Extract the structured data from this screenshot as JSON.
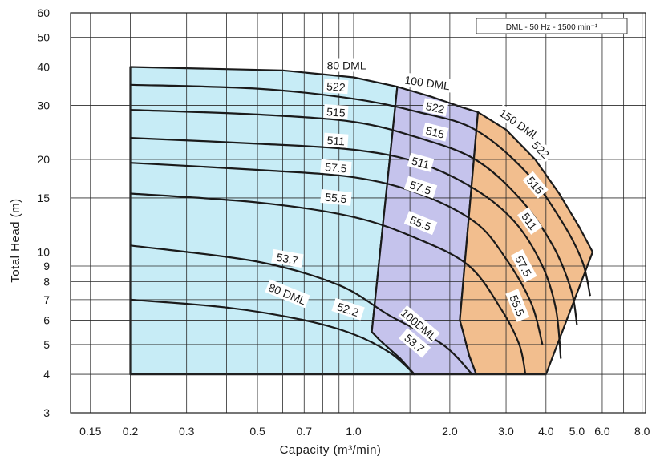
{
  "chart_data": {
    "type": "area",
    "note": "DML - 50 Hz - 1500 min⁻¹",
    "xlabel": "Capacity  (m³/min)",
    "ylabel": "Total Head  (m)",
    "x_scale": "log",
    "y_scale": "log",
    "xlim": [
      0.13,
      8.2
    ],
    "ylim": [
      3,
      60
    ],
    "grid": true,
    "x_ticks": [
      {
        "v": 0.15,
        "label": "0.15"
      },
      {
        "v": 0.2,
        "label": "0.2"
      },
      {
        "v": 0.3,
        "label": "0.3"
      },
      {
        "v": 0.5,
        "label": "0.5"
      },
      {
        "v": 0.7,
        "label": "0.7"
      },
      {
        "v": 1.0,
        "label": "1.0"
      },
      {
        "v": 2.0,
        "label": "2.0"
      },
      {
        "v": 3.0,
        "label": "3.0"
      },
      {
        "v": 4.0,
        "label": "4.0"
      },
      {
        "v": 5.0,
        "label": "5.0"
      },
      {
        "v": 6.0,
        "label": "6.0"
      },
      {
        "v": 8.0,
        "label": "8.0"
      }
    ],
    "y_ticks": [
      {
        "v": 3,
        "label": "3"
      },
      {
        "v": 4,
        "label": "4"
      },
      {
        "v": 5,
        "label": "5"
      },
      {
        "v": 6,
        "label": "6"
      },
      {
        "v": 7,
        "label": "7"
      },
      {
        "v": 8,
        "label": "8"
      },
      {
        "v": 9,
        "label": "9"
      },
      {
        "v": 10,
        "label": "10"
      },
      {
        "v": 15,
        "label": "15"
      },
      {
        "v": 20,
        "label": "20"
      },
      {
        "v": 30,
        "label": "30"
      },
      {
        "v": 40,
        "label": "40"
      },
      {
        "v": 50,
        "label": "50"
      },
      {
        "v": 60,
        "label": "60"
      }
    ],
    "x_grid_extra": [
      0.4,
      0.6,
      0.8,
      0.9,
      1.5,
      7.0
    ],
    "regions": [
      {
        "model": "80 DML",
        "color": "#c7ecf6",
        "polygon": [
          [
            0.2,
            4
          ],
          [
            0.2,
            40
          ],
          [
            0.6,
            39
          ],
          [
            1.0,
            37
          ],
          [
            1.37,
            34.5
          ],
          [
            1.14,
            5.5
          ],
          [
            1.2,
            5.2
          ],
          [
            1.4,
            4.5
          ],
          [
            1.55,
            4
          ]
        ]
      },
      {
        "model": "100 DML",
        "color": "#c5c3ec",
        "polygon": [
          [
            1.55,
            4
          ],
          [
            1.4,
            4.5
          ],
          [
            1.2,
            5.2
          ],
          [
            1.14,
            5.5
          ],
          [
            1.37,
            34.5
          ],
          [
            1.75,
            32
          ],
          [
            2.2,
            29.5
          ],
          [
            2.45,
            28.5
          ],
          [
            2.15,
            6
          ],
          [
            2.2,
            5.5
          ],
          [
            2.3,
            4.6
          ],
          [
            2.42,
            4
          ]
        ]
      },
      {
        "model": "150 DML",
        "color": "#f2be8e",
        "polygon": [
          [
            2.42,
            4
          ],
          [
            2.3,
            4.6
          ],
          [
            2.2,
            5.5
          ],
          [
            2.15,
            6
          ],
          [
            2.45,
            28.5
          ],
          [
            3.0,
            25
          ],
          [
            3.7,
            20
          ],
          [
            4.4,
            15.5
          ],
          [
            5.1,
            12
          ],
          [
            5.6,
            10
          ],
          [
            4.0,
            4
          ]
        ]
      }
    ],
    "curves": [
      {
        "label": "522",
        "points": [
          [
            0.2,
            35
          ],
          [
            0.5,
            34
          ],
          [
            1.0,
            31.5
          ],
          [
            1.6,
            28.5
          ],
          [
            2.4,
            25
          ],
          [
            3.5,
            18
          ],
          [
            4.5,
            12.5
          ],
          [
            5.2,
            9.3
          ],
          [
            5.5,
            7.2
          ]
        ]
      },
      {
        "label": "515",
        "points": [
          [
            0.2,
            29
          ],
          [
            0.5,
            28
          ],
          [
            1.0,
            26.5
          ],
          [
            1.6,
            23.5
          ],
          [
            2.4,
            20
          ],
          [
            3.3,
            15
          ],
          [
            4.2,
            10.5
          ],
          [
            4.8,
            7.5
          ],
          [
            5.0,
            5.8
          ]
        ]
      },
      {
        "label": "511",
        "points": [
          [
            0.2,
            23.5
          ],
          [
            0.5,
            22.5
          ],
          [
            1.0,
            21.5
          ],
          [
            1.6,
            19.5
          ],
          [
            2.4,
            16
          ],
          [
            3.2,
            12.5
          ],
          [
            3.9,
            9
          ],
          [
            4.3,
            6.5
          ],
          [
            4.45,
            4.5
          ]
        ]
      },
      {
        "label": "57.5",
        "points": [
          [
            0.2,
            19.5
          ],
          [
            0.5,
            18.5
          ],
          [
            1.0,
            17.5
          ],
          [
            1.6,
            15.5
          ],
          [
            2.4,
            12.5
          ],
          [
            3.0,
            9.5
          ],
          [
            3.6,
            6.8
          ],
          [
            3.9,
            5
          ]
        ]
      },
      {
        "label": "55.5",
        "points": [
          [
            0.2,
            15.5
          ],
          [
            0.5,
            14.5
          ],
          [
            1.0,
            13
          ],
          [
            1.6,
            11
          ],
          [
            2.3,
            9
          ],
          [
            2.9,
            6.5
          ],
          [
            3.3,
            5
          ],
          [
            3.45,
            4
          ]
        ]
      },
      {
        "label": "53.7",
        "points": [
          [
            0.2,
            10.5
          ],
          [
            0.5,
            9.3
          ],
          [
            0.9,
            7.8
          ],
          [
            1.3,
            6.2
          ],
          [
            1.9,
            5
          ],
          [
            2.35,
            4
          ]
        ]
      },
      {
        "label": "52.2",
        "points": [
          [
            0.2,
            7
          ],
          [
            0.4,
            6.6
          ],
          [
            0.7,
            6
          ],
          [
            1.0,
            5.4
          ],
          [
            1.3,
            4.7
          ],
          [
            1.55,
            4
          ]
        ]
      }
    ],
    "curve_labels": [
      {
        "text": "80 DML",
        "x": 0.95,
        "y": 40.5,
        "angle": 0
      },
      {
        "text": "100 DML",
        "x": 1.7,
        "y": 35.5,
        "angle": 8
      },
      {
        "text": "150 DML",
        "x": 3.3,
        "y": 26,
        "angle": 35
      },
      {
        "text": "522",
        "x": 0.88,
        "y": 34.5,
        "angle": 4
      },
      {
        "text": "515",
        "x": 0.88,
        "y": 28.5,
        "angle": 4
      },
      {
        "text": "511",
        "x": 0.88,
        "y": 23,
        "angle": 4
      },
      {
        "text": "57.5",
        "x": 0.88,
        "y": 18.8,
        "angle": 5
      },
      {
        "text": "55.5",
        "x": 0.88,
        "y": 15,
        "angle": 6
      },
      {
        "text": "53.7",
        "x": 0.62,
        "y": 9.5,
        "angle": 10
      },
      {
        "text": "522",
        "x": 1.8,
        "y": 29.5,
        "angle": 12
      },
      {
        "text": "515",
        "x": 1.8,
        "y": 24.5,
        "angle": 14
      },
      {
        "text": "511",
        "x": 1.62,
        "y": 19.5,
        "angle": 15
      },
      {
        "text": "57.5",
        "x": 1.62,
        "y": 16.2,
        "angle": 18
      },
      {
        "text": "55.5",
        "x": 1.62,
        "y": 12.4,
        "angle": 22
      },
      {
        "text": "522",
        "x": 3.85,
        "y": 21.5,
        "angle": 45
      },
      {
        "text": "515",
        "x": 3.7,
        "y": 16.5,
        "angle": 50
      },
      {
        "text": "511",
        "x": 3.55,
        "y": 12.6,
        "angle": 55
      },
      {
        "text": "57.5",
        "x": 3.4,
        "y": 9.0,
        "angle": 62
      },
      {
        "text": "55.5",
        "x": 3.25,
        "y": 6.7,
        "angle": 68
      },
      {
        "text": "80 DML",
        "x": 0.62,
        "y": 7.3,
        "angle": 22
      },
      {
        "text": "52.2",
        "x": 0.96,
        "y": 6.5,
        "angle": 18
      },
      {
        "text": "100DML",
        "x": 1.6,
        "y": 5.8,
        "angle": 40
      },
      {
        "text": "53.7",
        "x": 1.55,
        "y": 5.05,
        "angle": 40
      }
    ]
  }
}
